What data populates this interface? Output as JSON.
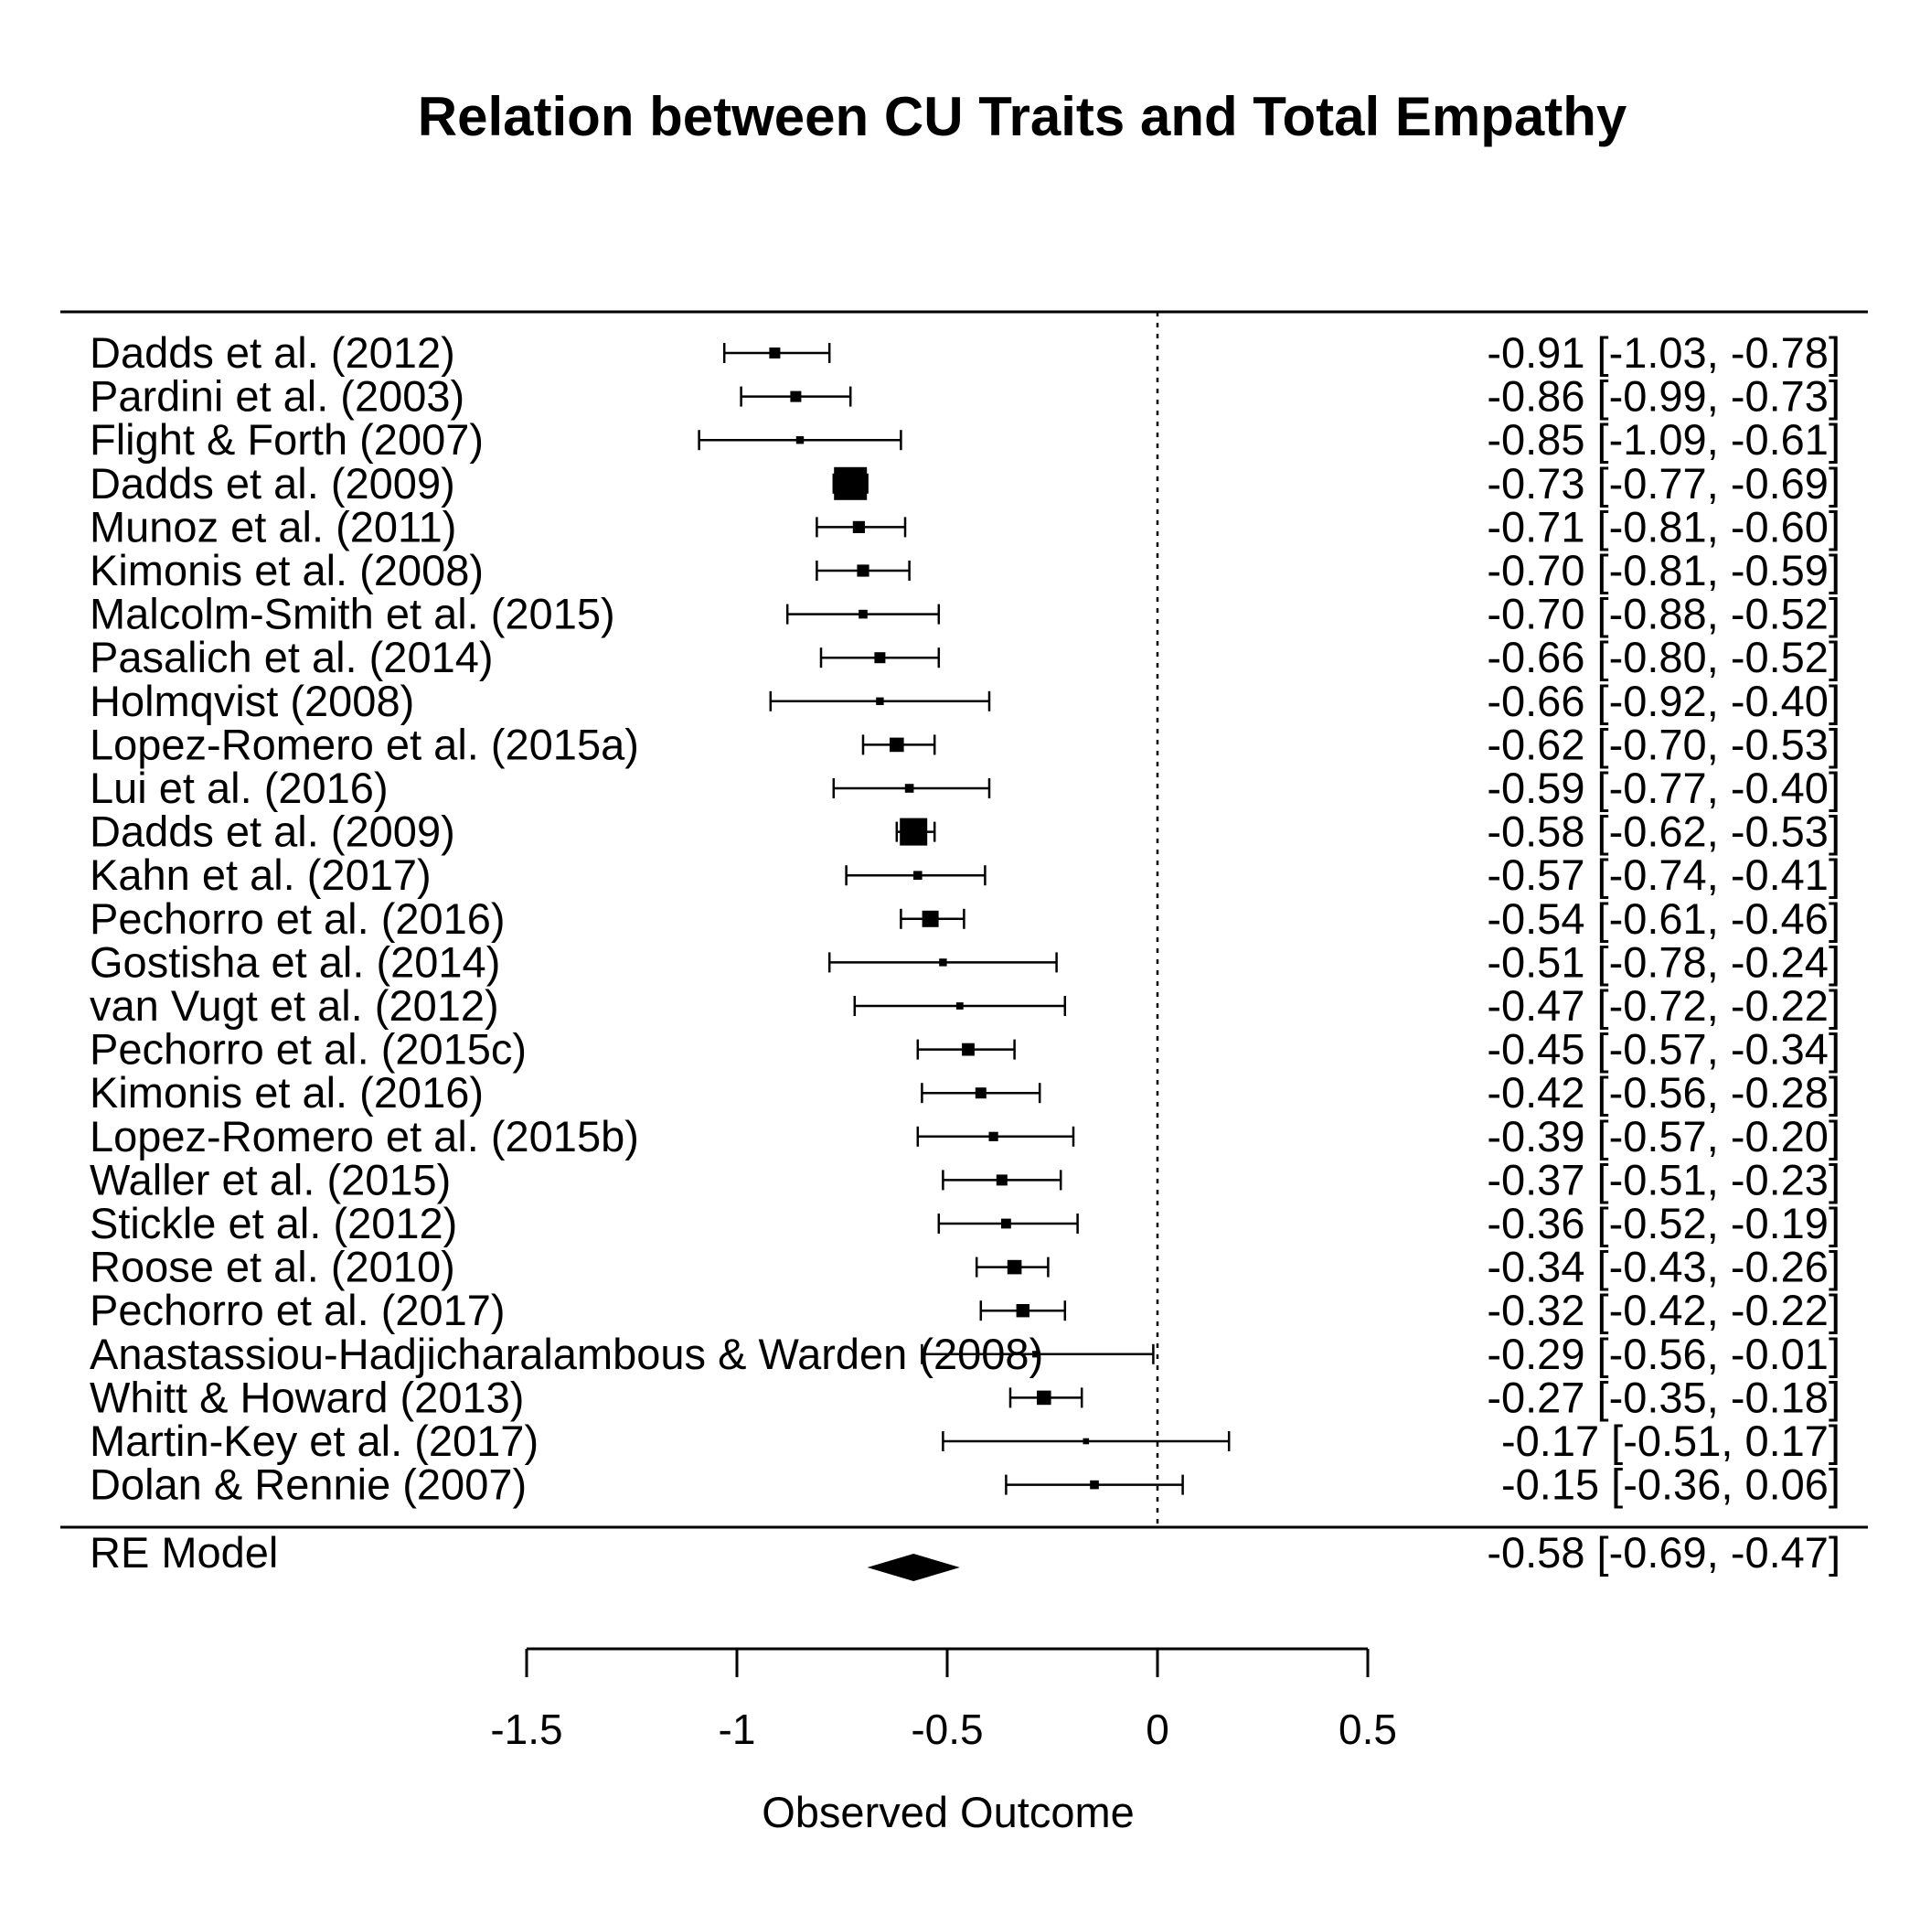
{
  "chart_data": {
    "type": "forest",
    "title": "Relation between CU Traits and Total Empathy",
    "xlabel": "Observed Outcome",
    "xlim": [
      -1.5,
      0.5
    ],
    "xticks": [
      -1.5,
      -1,
      -0.5,
      0,
      0.5
    ],
    "xtick_labels": [
      "-1.5",
      "-1",
      "-0.5",
      "0",
      "0.5"
    ],
    "reference_line": 0,
    "studies": [
      {
        "label": "Dadds et al. (2012)",
        "estimate": -0.91,
        "ci_low": -1.03,
        "ci_high": -0.78,
        "ci_text": "-0.91 [-1.03, -0.78]",
        "weight": 2
      },
      {
        "label": "Pardini et al. (2003)",
        "estimate": -0.86,
        "ci_low": -0.99,
        "ci_high": -0.73,
        "ci_text": "-0.86 [-0.99, -0.73]",
        "weight": 2
      },
      {
        "label": "Flight & Forth (2007)",
        "estimate": -0.85,
        "ci_low": -1.09,
        "ci_high": -0.61,
        "ci_text": "-0.85 [-1.09, -0.61]",
        "weight": 1.4
      },
      {
        "label": "Dadds et al. (2009)",
        "estimate": -0.73,
        "ci_low": -0.77,
        "ci_high": -0.69,
        "ci_text": "-0.73 [-0.77, -0.69]",
        "weight": 6
      },
      {
        "label": "Munoz et al. (2011)",
        "estimate": -0.71,
        "ci_low": -0.81,
        "ci_high": -0.6,
        "ci_text": "-0.71 [-0.81, -0.60]",
        "weight": 2.2
      },
      {
        "label": "Kimonis et al. (2008)",
        "estimate": -0.7,
        "ci_low": -0.81,
        "ci_high": -0.59,
        "ci_text": "-0.70 [-0.81, -0.59]",
        "weight": 2.2
      },
      {
        "label": "Malcolm-Smith et al. (2015)",
        "estimate": -0.7,
        "ci_low": -0.88,
        "ci_high": -0.52,
        "ci_text": "-0.70 [-0.88, -0.52]",
        "weight": 1.6
      },
      {
        "label": "Pasalich et al. (2014)",
        "estimate": -0.66,
        "ci_low": -0.8,
        "ci_high": -0.52,
        "ci_text": "-0.66 [-0.80, -0.52]",
        "weight": 2
      },
      {
        "label": "Holmqvist (2008)",
        "estimate": -0.66,
        "ci_low": -0.92,
        "ci_high": -0.4,
        "ci_text": "-0.66 [-0.92, -0.40]",
        "weight": 1.4
      },
      {
        "label": "Lopez-Romero et al. (2015a)",
        "estimate": -0.62,
        "ci_low": -0.7,
        "ci_high": -0.53,
        "ci_text": "-0.62 [-0.70, -0.53]",
        "weight": 2.6
      },
      {
        "label": "Lui et al. (2016)",
        "estimate": -0.59,
        "ci_low": -0.77,
        "ci_high": -0.4,
        "ci_text": "-0.59 [-0.77, -0.40]",
        "weight": 1.6
      },
      {
        "label": "Dadds et al. (2009)",
        "estimate": -0.58,
        "ci_low": -0.62,
        "ci_high": -0.53,
        "ci_text": "-0.58 [-0.62, -0.53]",
        "weight": 5
      },
      {
        "label": "Kahn et al. (2017)",
        "estimate": -0.57,
        "ci_low": -0.74,
        "ci_high": -0.41,
        "ci_text": "-0.57 [-0.74, -0.41]",
        "weight": 1.6
      },
      {
        "label": "Pechorro et al. (2016)",
        "estimate": -0.54,
        "ci_low": -0.61,
        "ci_high": -0.46,
        "ci_text": "-0.54 [-0.61, -0.46]",
        "weight": 3
      },
      {
        "label": "Gostisha et al. (2014)",
        "estimate": -0.51,
        "ci_low": -0.78,
        "ci_high": -0.24,
        "ci_text": "-0.51 [-0.78, -0.24]",
        "weight": 1.4
      },
      {
        "label": "van Vugt et al. (2012)",
        "estimate": -0.47,
        "ci_low": -0.72,
        "ci_high": -0.22,
        "ci_text": "-0.47 [-0.72, -0.22]",
        "weight": 1.3
      },
      {
        "label": "Pechorro et al. (2015c)",
        "estimate": -0.45,
        "ci_low": -0.57,
        "ci_high": -0.34,
        "ci_text": "-0.45 [-0.57, -0.34]",
        "weight": 2.3
      },
      {
        "label": "Kimonis et al. (2016)",
        "estimate": -0.42,
        "ci_low": -0.56,
        "ci_high": -0.28,
        "ci_text": "-0.42 [-0.56, -0.28]",
        "weight": 2
      },
      {
        "label": "Lopez-Romero et al. (2015b)",
        "estimate": -0.39,
        "ci_low": -0.57,
        "ci_high": -0.2,
        "ci_text": "-0.39 [-0.57, -0.20]",
        "weight": 1.7
      },
      {
        "label": "Waller et al. (2015)",
        "estimate": -0.37,
        "ci_low": -0.51,
        "ci_high": -0.23,
        "ci_text": "-0.37 [-0.51, -0.23]",
        "weight": 2
      },
      {
        "label": "Stickle et al. (2012)",
        "estimate": -0.36,
        "ci_low": -0.52,
        "ci_high": -0.19,
        "ci_text": "-0.36 [-0.52, -0.19]",
        "weight": 1.8
      },
      {
        "label": "Roose et al. (2010)",
        "estimate": -0.34,
        "ci_low": -0.43,
        "ci_high": -0.26,
        "ci_text": "-0.34 [-0.43, -0.26]",
        "weight": 2.6
      },
      {
        "label": "Pechorro et al. (2017)",
        "estimate": -0.32,
        "ci_low": -0.42,
        "ci_high": -0.22,
        "ci_text": "-0.32 [-0.42, -0.22]",
        "weight": 2.4
      },
      {
        "label": "Anastassiou-Hadjicharalambous & Warden (2008)",
        "estimate": -0.29,
        "ci_low": -0.56,
        "ci_high": -0.01,
        "ci_text": "-0.29 [-0.56, -0.01]",
        "weight": 1.2
      },
      {
        "label": "Whitt & Howard (2013)",
        "estimate": -0.27,
        "ci_low": -0.35,
        "ci_high": -0.18,
        "ci_text": "-0.27 [-0.35, -0.18]",
        "weight": 2.6
      },
      {
        "label": "Martin-Key et al. (2017)",
        "estimate": -0.17,
        "ci_low": -0.51,
        "ci_high": 0.17,
        "ci_text": "-0.17 [-0.51,  0.17]",
        "weight": 1.1
      },
      {
        "label": "Dolan & Rennie (2007)",
        "estimate": -0.15,
        "ci_low": -0.36,
        "ci_high": 0.06,
        "ci_text": "-0.15 [-0.36,  0.06]",
        "weight": 1.6
      }
    ],
    "summary": {
      "label": "RE Model",
      "estimate": -0.58,
      "ci_low": -0.69,
      "ci_high": -0.47,
      "ci_text": "-0.58 [-0.69, -0.47]"
    }
  }
}
